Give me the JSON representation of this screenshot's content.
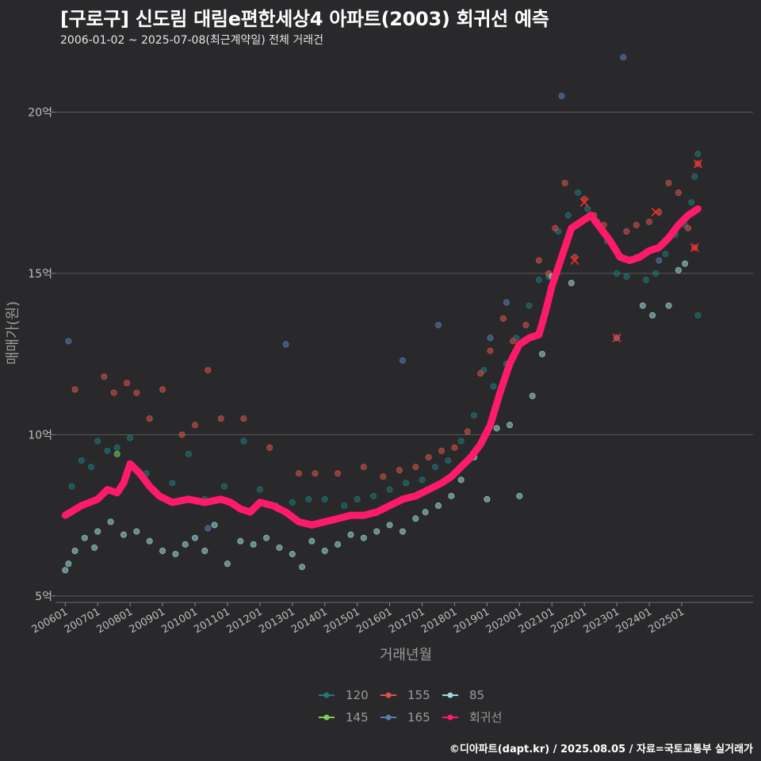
{
  "header": {
    "title": "[구로구] 신도림 대림e편한세상4 아파트(2003) 회귀선 예측",
    "subtitle": "2006-01-02 ~ 2025-07-08(최근계약일) 전체 거래건"
  },
  "caption": "©디아파트(dapt.kr) / 2025.08.05 / 자료=국토교통부 실거래가",
  "chart_data": {
    "type": "scatter",
    "xlabel": "거래년월",
    "ylabel": "매매가(원)",
    "ylim": [
      4.8,
      22
    ],
    "y_ticks": [
      {
        "value": 5,
        "label": "5억"
      },
      {
        "value": 10,
        "label": "10억"
      },
      {
        "value": 15,
        "label": "15억"
      },
      {
        "value": 20,
        "label": "20억"
      }
    ],
    "x_ticks": [
      "200601",
      "200701",
      "200801",
      "200901",
      "201001",
      "201101",
      "201201",
      "201301",
      "201401",
      "201501",
      "201601",
      "201701",
      "201801",
      "201901",
      "202001",
      "202101",
      "202201",
      "202301",
      "202401",
      "202501"
    ],
    "x_start_year": 2006,
    "grid": true,
    "legend_position": "bottom",
    "series": [
      {
        "name": "120",
        "color": "#1f7a7a",
        "points": [
          [
            2006.2,
            8.4
          ],
          [
            2006.5,
            9.2
          ],
          [
            2006.8,
            9.0
          ],
          [
            2007.0,
            9.8
          ],
          [
            2007.3,
            9.5
          ],
          [
            2007.6,
            9.6
          ],
          [
            2008.0,
            9.9
          ],
          [
            2008.5,
            8.8
          ],
          [
            2009.3,
            8.5
          ],
          [
            2009.8,
            9.4
          ],
          [
            2010.3,
            8.0
          ],
          [
            2010.9,
            8.4
          ],
          [
            2011.5,
            9.8
          ],
          [
            2012.0,
            8.3
          ],
          [
            2012.5,
            7.8
          ],
          [
            2013.0,
            7.9
          ],
          [
            2013.5,
            8.0
          ],
          [
            2014.0,
            8.0
          ],
          [
            2014.6,
            7.8
          ],
          [
            2015.0,
            8.0
          ],
          [
            2015.5,
            8.1
          ],
          [
            2016.0,
            8.3
          ],
          [
            2016.5,
            8.5
          ],
          [
            2017.0,
            8.6
          ],
          [
            2017.4,
            9.0
          ],
          [
            2017.8,
            9.2
          ],
          [
            2018.2,
            9.8
          ],
          [
            2018.6,
            10.6
          ],
          [
            2018.9,
            12.0
          ],
          [
            2019.2,
            11.5
          ],
          [
            2019.6,
            12.2
          ],
          [
            2019.9,
            13.0
          ],
          [
            2020.3,
            14.0
          ],
          [
            2020.6,
            14.8
          ],
          [
            2020.9,
            14.9
          ],
          [
            2021.2,
            16.3
          ],
          [
            2021.5,
            16.8
          ],
          [
            2021.8,
            17.5
          ],
          [
            2022.1,
            17.0
          ],
          [
            2022.4,
            16.6
          ],
          [
            2022.7,
            16.0
          ],
          [
            2023.0,
            15.0
          ],
          [
            2023.3,
            14.9
          ],
          [
            2023.6,
            15.5
          ],
          [
            2023.9,
            14.8
          ],
          [
            2024.2,
            15.0
          ],
          [
            2024.5,
            15.6
          ],
          [
            2024.8,
            16.2
          ],
          [
            2025.1,
            16.5
          ],
          [
            2025.3,
            17.2
          ],
          [
            2025.4,
            18.0
          ],
          [
            2025.5,
            18.7
          ],
          [
            2025.5,
            13.7
          ]
        ]
      },
      {
        "name": "145",
        "color": "#7bd05a",
        "points": [
          [
            2007.6,
            9.4
          ]
        ]
      },
      {
        "name": "155",
        "color": "#d9534f",
        "points": [
          [
            2006.3,
            11.4
          ],
          [
            2007.2,
            11.8
          ],
          [
            2007.5,
            11.3
          ],
          [
            2007.9,
            11.6
          ],
          [
            2008.2,
            11.3
          ],
          [
            2008.6,
            10.5
          ],
          [
            2009.0,
            11.4
          ],
          [
            2009.6,
            10.0
          ],
          [
            2010.0,
            10.3
          ],
          [
            2010.4,
            12.0
          ],
          [
            2010.8,
            10.5
          ],
          [
            2011.5,
            10.5
          ],
          [
            2012.3,
            9.6
          ],
          [
            2013.2,
            8.8
          ],
          [
            2013.7,
            8.8
          ],
          [
            2014.4,
            8.8
          ],
          [
            2015.2,
            9.0
          ],
          [
            2015.8,
            8.7
          ],
          [
            2016.3,
            8.9
          ],
          [
            2016.8,
            9.0
          ],
          [
            2017.2,
            9.3
          ],
          [
            2017.6,
            9.5
          ],
          [
            2018.0,
            9.6
          ],
          [
            2018.4,
            10.1
          ],
          [
            2018.8,
            11.9
          ],
          [
            2019.1,
            12.6
          ],
          [
            2019.5,
            13.6
          ],
          [
            2019.8,
            12.9
          ],
          [
            2020.2,
            13.4
          ],
          [
            2020.6,
            15.4
          ],
          [
            2020.9,
            15.0
          ],
          [
            2021.1,
            16.4
          ],
          [
            2021.4,
            17.8
          ],
          [
            2021.7,
            15.5
          ],
          [
            2022.0,
            17.3
          ],
          [
            2022.3,
            16.8
          ],
          [
            2022.6,
            16.5
          ],
          [
            2023.0,
            13.0
          ],
          [
            2023.3,
            16.3
          ],
          [
            2023.6,
            16.5
          ],
          [
            2024.0,
            16.6
          ],
          [
            2024.3,
            16.9
          ],
          [
            2024.6,
            17.8
          ],
          [
            2024.9,
            17.5
          ],
          [
            2025.2,
            16.4
          ],
          [
            2025.4,
            15.8
          ],
          [
            2025.5,
            18.4
          ]
        ]
      },
      {
        "name": "165",
        "color": "#5a7bb0",
        "points": [
          [
            2006.1,
            12.9
          ],
          [
            2010.4,
            7.1
          ],
          [
            2012.8,
            12.8
          ],
          [
            2016.4,
            12.3
          ],
          [
            2017.5,
            13.4
          ],
          [
            2019.1,
            13.0
          ],
          [
            2019.6,
            14.1
          ],
          [
            2021.3,
            20.5
          ],
          [
            2023.0,
            13.0
          ],
          [
            2023.2,
            21.7
          ],
          [
            2024.3,
            15.4
          ]
        ]
      },
      {
        "name": "85",
        "color": "#9fd8d8",
        "points": [
          [
            2006.0,
            5.8
          ],
          [
            2006.1,
            6.0
          ],
          [
            2006.3,
            6.4
          ],
          [
            2006.6,
            6.8
          ],
          [
            2006.9,
            6.5
          ],
          [
            2007.0,
            7.0
          ],
          [
            2007.4,
            7.3
          ],
          [
            2007.8,
            6.9
          ],
          [
            2008.2,
            7.0
          ],
          [
            2008.6,
            6.7
          ],
          [
            2009.0,
            6.4
          ],
          [
            2009.4,
            6.3
          ],
          [
            2009.7,
            6.6
          ],
          [
            2010.0,
            6.8
          ],
          [
            2010.3,
            6.4
          ],
          [
            2010.6,
            7.2
          ],
          [
            2011.0,
            6.0
          ],
          [
            2011.4,
            6.7
          ],
          [
            2011.8,
            6.6
          ],
          [
            2012.2,
            6.8
          ],
          [
            2012.6,
            6.5
          ],
          [
            2013.0,
            6.3
          ],
          [
            2013.3,
            5.9
          ],
          [
            2013.6,
            6.7
          ],
          [
            2014.0,
            6.4
          ],
          [
            2014.4,
            6.6
          ],
          [
            2014.8,
            6.9
          ],
          [
            2015.2,
            6.8
          ],
          [
            2015.6,
            7.0
          ],
          [
            2016.0,
            7.2
          ],
          [
            2016.4,
            7.0
          ],
          [
            2016.8,
            7.4
          ],
          [
            2017.1,
            7.6
          ],
          [
            2017.5,
            7.8
          ],
          [
            2017.9,
            8.1
          ],
          [
            2018.2,
            8.6
          ],
          [
            2018.6,
            9.3
          ],
          [
            2019.0,
            8.0
          ],
          [
            2019.3,
            10.2
          ],
          [
            2019.7,
            10.3
          ],
          [
            2020.0,
            8.1
          ],
          [
            2020.4,
            11.2
          ],
          [
            2020.7,
            12.5
          ],
          [
            2021.0,
            14.9
          ],
          [
            2021.6,
            14.7
          ],
          [
            2023.8,
            14.0
          ],
          [
            2024.1,
            13.7
          ],
          [
            2024.6,
            14.0
          ],
          [
            2024.9,
            15.1
          ],
          [
            2025.1,
            15.3
          ]
        ]
      }
    ],
    "regression": {
      "name": "회귀선",
      "color": "#ff1a6a",
      "points": [
        [
          2006.0,
          7.5
        ],
        [
          2006.5,
          7.8
        ],
        [
          2007.0,
          8.0
        ],
        [
          2007.3,
          8.3
        ],
        [
          2007.6,
          8.2
        ],
        [
          2007.8,
          8.5
        ],
        [
          2008.0,
          9.1
        ],
        [
          2008.3,
          8.8
        ],
        [
          2008.6,
          8.4
        ],
        [
          2008.9,
          8.1
        ],
        [
          2009.3,
          7.9
        ],
        [
          2009.8,
          8.0
        ],
        [
          2010.3,
          7.9
        ],
        [
          2010.8,
          8.0
        ],
        [
          2011.1,
          7.9
        ],
        [
          2011.4,
          7.7
        ],
        [
          2011.7,
          7.6
        ],
        [
          2012.0,
          7.9
        ],
        [
          2012.4,
          7.8
        ],
        [
          2012.8,
          7.6
        ],
        [
          2013.2,
          7.3
        ],
        [
          2013.6,
          7.2
        ],
        [
          2014.0,
          7.3
        ],
        [
          2014.4,
          7.4
        ],
        [
          2014.8,
          7.5
        ],
        [
          2015.2,
          7.5
        ],
        [
          2015.6,
          7.6
        ],
        [
          2016.0,
          7.8
        ],
        [
          2016.4,
          8.0
        ],
        [
          2016.8,
          8.1
        ],
        [
          2017.2,
          8.3
        ],
        [
          2017.6,
          8.5
        ],
        [
          2017.9,
          8.7
        ],
        [
          2018.2,
          9.0
        ],
        [
          2018.5,
          9.3
        ],
        [
          2018.8,
          9.7
        ],
        [
          2019.1,
          10.3
        ],
        [
          2019.4,
          11.3
        ],
        [
          2019.7,
          12.2
        ],
        [
          2020.0,
          12.8
        ],
        [
          2020.3,
          13.0
        ],
        [
          2020.6,
          13.1
        ],
        [
          2020.8,
          13.8
        ],
        [
          2021.0,
          14.6
        ],
        [
          2021.2,
          15.2
        ],
        [
          2021.4,
          15.8
        ],
        [
          2021.6,
          16.4
        ],
        [
          2021.9,
          16.6
        ],
        [
          2022.2,
          16.8
        ],
        [
          2022.5,
          16.4
        ],
        [
          2022.8,
          16.0
        ],
        [
          2023.1,
          15.5
        ],
        [
          2023.4,
          15.4
        ],
        [
          2023.7,
          15.5
        ],
        [
          2024.0,
          15.7
        ],
        [
          2024.3,
          15.8
        ],
        [
          2024.6,
          16.1
        ],
        [
          2024.9,
          16.5
        ],
        [
          2025.2,
          16.8
        ],
        [
          2025.5,
          17.0
        ]
      ]
    },
    "highlighted_x_marks": [
      [
        2021.7,
        15.4
      ],
      [
        2022.0,
        17.2
      ],
      [
        2023.0,
        13.0
      ],
      [
        2024.2,
        16.9
      ],
      [
        2025.4,
        15.8
      ],
      [
        2025.5,
        18.4
      ]
    ],
    "legend_items": [
      {
        "name": "120",
        "color": "#1f7a7a"
      },
      {
        "name": "155",
        "color": "#d9534f"
      },
      {
        "name": "85",
        "color": "#9fd8d8"
      },
      {
        "name": "145",
        "color": "#7bd05a"
      },
      {
        "name": "165",
        "color": "#5a7bb0"
      },
      {
        "name": "회귀선",
        "color": "#ff1a6a"
      }
    ]
  }
}
